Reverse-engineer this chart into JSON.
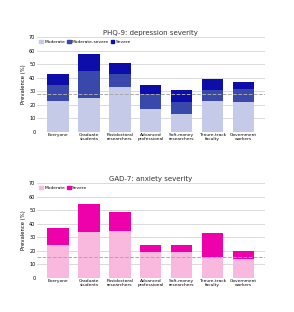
{
  "categories": [
    "Everyone",
    "Graduate\nstudents",
    "Postdoctoral\nresearchers",
    "Advanced\nprofessional",
    "Soft-money\nresearchers",
    "Tenure-track\nfaculty",
    "Government\nworkers"
  ],
  "phq9_title": "PHQ-9: depression severity",
  "phq9_moderate": [
    23,
    25,
    33,
    17,
    13,
    23,
    22
  ],
  "phq9_moderate_severe": [
    12,
    20,
    10,
    11,
    9,
    8,
    10
  ],
  "phq9_severe": [
    8,
    13,
    8,
    7,
    9,
    8,
    5
  ],
  "phq9_dashed_line": 28,
  "phq9_ylim": [
    0,
    70
  ],
  "phq9_yticks": [
    0,
    10,
    20,
    30,
    40,
    50,
    60,
    70
  ],
  "phq9_color_moderate": "#c5cae9",
  "phq9_color_moderate_severe": "#3949ab",
  "phq9_color_severe": "#0d0daa",
  "gad7_title": "GAD-7: anxiety severity",
  "gad7_moderate": [
    24,
    34,
    35,
    19,
    19,
    15,
    14
  ],
  "gad7_severe": [
    13,
    21,
    14,
    5,
    5,
    18,
    6
  ],
  "gad7_dashed_line": 15,
  "gad7_ylim": [
    0,
    70
  ],
  "gad7_yticks": [
    0,
    10,
    20,
    30,
    40,
    50,
    60,
    70
  ],
  "gad7_color_moderate": "#f9b8de",
  "gad7_color_severe": "#ee00aa",
  "ylabel": "Prevalence (%)",
  "bg_color": "#ffffff",
  "grid_color": "#cccccc",
  "dashed_color": "#aaaaaa"
}
